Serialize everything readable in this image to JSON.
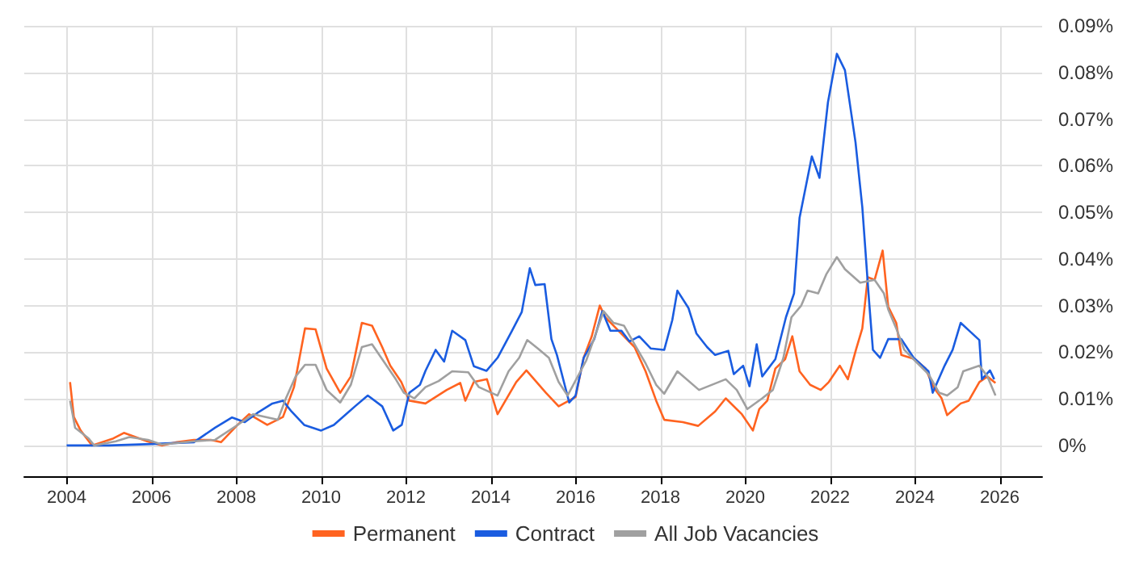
{
  "chart_data": {
    "type": "line",
    "xlim": [
      2003,
      2027
    ],
    "xticks": [
      2004,
      2006,
      2008,
      2010,
      2012,
      2014,
      2016,
      2018,
      2020,
      2022,
      2024,
      2026
    ],
    "ylim": [
      -0.0066,
      0.09
    ],
    "yticks": [
      {
        "value": 0,
        "label": "0%"
      },
      {
        "value": 0.01,
        "label": "0.01%"
      },
      {
        "value": 0.02,
        "label": "0.02%"
      },
      {
        "value": 0.03,
        "label": "0.03%"
      },
      {
        "value": 0.04,
        "label": "0.04%"
      },
      {
        "value": 0.05,
        "label": "0.05%"
      },
      {
        "value": 0.06,
        "label": "0.06%"
      },
      {
        "value": 0.07,
        "label": "0.07%"
      },
      {
        "value": 0.08,
        "label": "0.08%"
      },
      {
        "value": 0.09,
        "label": "0.09%"
      }
    ],
    "grid": true,
    "legend": "bottom",
    "series": [
      {
        "name": "Permanent",
        "color": "#ff6320",
        "x": [
          2004.08,
          2004.17,
          2004.33,
          2004.6,
          2005.1,
          2005.35,
          2005.9,
          2006.24,
          2006.6,
          2007.0,
          2007.4,
          2007.64,
          2008.03,
          2008.3,
          2008.73,
          2009.1,
          2009.36,
          2009.62,
          2009.87,
          2010.13,
          2010.45,
          2010.7,
          2010.96,
          2011.2,
          2011.44,
          2011.63,
          2011.89,
          2012.08,
          2012.46,
          2012.96,
          2013.28,
          2013.4,
          2013.6,
          2013.91,
          2014.16,
          2014.6,
          2014.84,
          2015.3,
          2015.6,
          2016.0,
          2016.19,
          2016.38,
          2016.57,
          2016.7,
          2017.14,
          2017.39,
          2017.65,
          2017.9,
          2018.09,
          2018.53,
          2018.89,
          2019.29,
          2019.54,
          2019.92,
          2020.18,
          2020.33,
          2020.52,
          2020.71,
          2020.94,
          2021.11,
          2021.28,
          2021.53,
          2021.78,
          2021.97,
          2022.23,
          2022.42,
          2022.61,
          2022.76,
          2022.89,
          2023.05,
          2023.24,
          2023.37,
          2023.56,
          2023.68,
          2024.0,
          2024.25,
          2024.44,
          2024.63,
          2024.76,
          2025.08,
          2025.27,
          2025.52,
          2025.71,
          2025.9
        ],
        "values": [
          0.0136,
          0.0061,
          0.0032,
          0,
          0.0015,
          0.0027,
          0.0009,
          0,
          0.0007,
          0.0012,
          0.0012,
          0.0007,
          0.0044,
          0.0067,
          0.0044,
          0.0061,
          0.0125,
          0.0251,
          0.0249,
          0.0165,
          0.0113,
          0.0148,
          0.0263,
          0.0257,
          0.0211,
          0.0171,
          0.0136,
          0.0096,
          0.009,
          0.0119,
          0.0134,
          0.0096,
          0.0136,
          0.0142,
          0.0067,
          0.0136,
          0.0161,
          0.0113,
          0.0084,
          0.0104,
          0.0188,
          0.0234,
          0.03,
          0.0275,
          0.0234,
          0.0211,
          0.0159,
          0.0096,
          0.0055,
          0.005,
          0.0042,
          0.0073,
          0.0101,
          0.0067,
          0.0032,
          0.0078,
          0.0096,
          0.0165,
          0.0185,
          0.0234,
          0.0159,
          0.013,
          0.0119,
          0.0136,
          0.0171,
          0.0142,
          0.0205,
          0.0251,
          0.0361,
          0.0355,
          0.0418,
          0.0298,
          0.0263,
          0.0194,
          0.0185,
          0.0165,
          0.0125,
          0.0101,
          0.0065,
          0.009,
          0.0096,
          0.0136,
          0.0148,
          0.0134
        ]
      },
      {
        "name": "Contract",
        "color": "#1a5ce0",
        "x": [
          2004.0,
          2005.0,
          2006.0,
          2007.0,
          2007.5,
          2007.9,
          2008.2,
          2008.5,
          2008.85,
          2009.1,
          2009.3,
          2009.6,
          2010.0,
          2010.3,
          2010.8,
          2011.1,
          2011.44,
          2011.7,
          2011.9,
          2012.08,
          2012.33,
          2012.46,
          2012.7,
          2012.9,
          2013.09,
          2013.4,
          2013.6,
          2013.9,
          2014.16,
          2014.5,
          2014.73,
          2014.92,
          2015.05,
          2015.27,
          2015.43,
          2015.56,
          2015.85,
          2016.0,
          2016.19,
          2016.44,
          2016.63,
          2016.82,
          2017.08,
          2017.27,
          2017.5,
          2017.77,
          2018.09,
          2018.28,
          2018.4,
          2018.66,
          2018.85,
          2019.1,
          2019.29,
          2019.6,
          2019.73,
          2019.95,
          2020.1,
          2020.27,
          2020.4,
          2020.71,
          2020.96,
          2021.15,
          2021.28,
          2021.57,
          2021.75,
          2021.95,
          2022.16,
          2022.35,
          2022.6,
          2022.76,
          2022.92,
          2023.01,
          2023.18,
          2023.37,
          2023.68,
          2023.97,
          2024.32,
          2024.42,
          2024.7,
          2024.89,
          2025.08,
          2025.33,
          2025.52,
          2025.58,
          2025.77,
          2025.87
        ],
        "values": [
          0,
          0,
          0.0003,
          0.0007,
          0.0038,
          0.006,
          0.005,
          0.007,
          0.009,
          0.0096,
          0.0073,
          0.0044,
          0.0032,
          0.0044,
          0.0084,
          0.0107,
          0.0084,
          0.0032,
          0.0044,
          0.0113,
          0.013,
          0.016,
          0.0205,
          0.018,
          0.0246,
          0.0226,
          0.017,
          0.016,
          0.0188,
          0.0246,
          0.0286,
          0.038,
          0.0344,
          0.0346,
          0.0228,
          0.0194,
          0.0092,
          0.0107,
          0.0188,
          0.0228,
          0.0288,
          0.0246,
          0.0246,
          0.0223,
          0.0234,
          0.0208,
          0.0205,
          0.0269,
          0.0332,
          0.0295,
          0.024,
          0.0211,
          0.0194,
          0.0203,
          0.0153,
          0.0171,
          0.0127,
          0.0217,
          0.0148,
          0.0185,
          0.0275,
          0.0326,
          0.0488,
          0.062,
          0.0574,
          0.0736,
          0.084,
          0.0805,
          0.065,
          0.0511,
          0.0309,
          0.0205,
          0.0188,
          0.0228,
          0.0228,
          0.0188,
          0.0159,
          0.0113,
          0.0171,
          0.0205,
          0.0263,
          0.0242,
          0.0226,
          0.0142,
          0.0161,
          0.0142
        ]
      },
      {
        "name": "All Job Vacancies",
        "color": "#a0a0a0",
        "x": [
          2004.08,
          2004.2,
          2004.52,
          2004.65,
          2005.16,
          2005.48,
          2005.92,
          2006.24,
          2007.0,
          2007.5,
          2008.03,
          2008.4,
          2008.98,
          2009.17,
          2009.4,
          2009.62,
          2009.87,
          2010.13,
          2010.45,
          2010.7,
          2010.96,
          2011.2,
          2011.44,
          2011.76,
          2011.95,
          2012.2,
          2012.46,
          2012.77,
          2013.09,
          2013.47,
          2013.72,
          2014.16,
          2014.42,
          2014.67,
          2014.86,
          2015.11,
          2015.37,
          2015.6,
          2015.81,
          2016.25,
          2016.5,
          2016.66,
          2016.89,
          2017.14,
          2017.39,
          2017.65,
          2017.9,
          2018.09,
          2018.4,
          2018.91,
          2019.54,
          2019.8,
          2020.05,
          2020.4,
          2020.65,
          2020.9,
          2021.09,
          2021.32,
          2021.47,
          2021.72,
          2021.91,
          2022.16,
          2022.35,
          2022.71,
          2023.05,
          2023.27,
          2023.37,
          2023.56,
          2023.75,
          2024.0,
          2024.32,
          2024.57,
          2024.76,
          2025.01,
          2025.14,
          2025.52,
          2025.71,
          2025.9
        ],
        "values": [
          0.0096,
          0.0038,
          0.0015,
          0,
          0.0009,
          0.0018,
          0.0012,
          0.0002,
          0.0009,
          0.0012,
          0.0044,
          0.0067,
          0.0055,
          0.0101,
          0.0148,
          0.0173,
          0.0173,
          0.0119,
          0.0092,
          0.013,
          0.0211,
          0.0217,
          0.0185,
          0.0142,
          0.0113,
          0.0101,
          0.0125,
          0.0138,
          0.0159,
          0.0157,
          0.0125,
          0.0107,
          0.0159,
          0.0188,
          0.0226,
          0.0208,
          0.0188,
          0.0136,
          0.0107,
          0.0182,
          0.0246,
          0.0288,
          0.0263,
          0.0257,
          0.0217,
          0.0176,
          0.013,
          0.0111,
          0.0159,
          0.0119,
          0.0142,
          0.0119,
          0.0078,
          0.0101,
          0.0119,
          0.0188,
          0.0275,
          0.03,
          0.0332,
          0.0326,
          0.0367,
          0.0404,
          0.0378,
          0.0349,
          0.0355,
          0.0326,
          0.0292,
          0.0251,
          0.0205,
          0.0182,
          0.0153,
          0.0113,
          0.0107,
          0.0125,
          0.0159,
          0.0171,
          0.0148,
          0.0107
        ]
      }
    ]
  }
}
